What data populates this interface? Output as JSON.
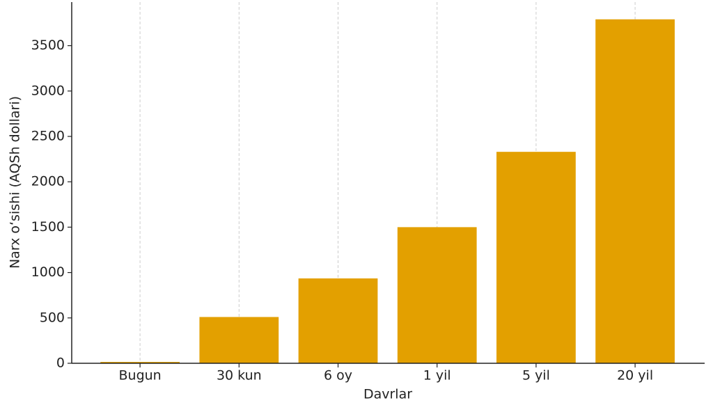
{
  "chart_data": {
    "type": "bar",
    "xlabel": "Davrlar",
    "ylabel": "Narx oʻsishi (AQSh dollari)",
    "categories": [
      "Bugun",
      "30 kun",
      "6 oy",
      "1 yil",
      "5 yil",
      "20 yil"
    ],
    "values": [
      15,
      510,
      935,
      1500,
      2330,
      3790
    ],
    "color": "#e3a000",
    "ylim": [
      0,
      3980
    ],
    "yticks": [
      0,
      500,
      1000,
      1500,
      2000,
      2500,
      3000,
      3500
    ],
    "grid": "x"
  }
}
